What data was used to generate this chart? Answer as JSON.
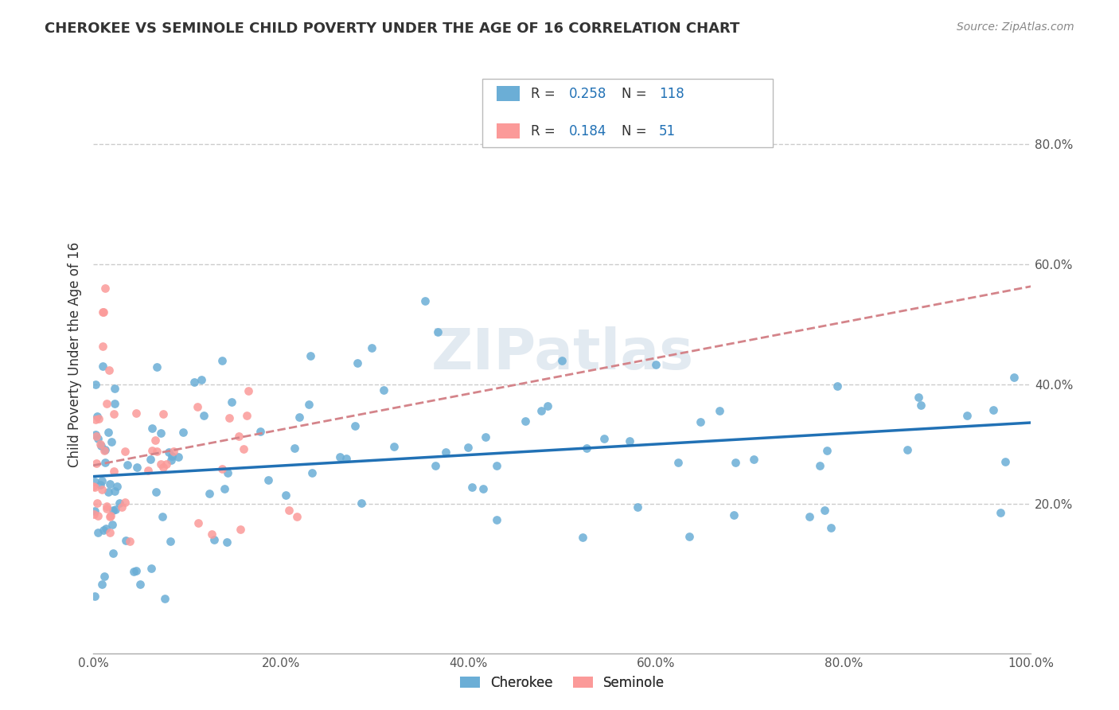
{
  "title": "CHEROKEE VS SEMINOLE CHILD POVERTY UNDER THE AGE OF 16 CORRELATION CHART",
  "source": "Source: ZipAtlas.com",
  "ylabel": "Child Poverty Under the Age of 16",
  "xlim": [
    0.0,
    1.0
  ],
  "ylim": [
    -0.05,
    0.95
  ],
  "cherokee_color": "#6baed6",
  "seminole_color": "#fb9a99",
  "cherokee_R": 0.258,
  "cherokee_N": 118,
  "seminole_R": 0.184,
  "seminole_N": 51,
  "trend_cherokee_color": "#2171b5",
  "trend_seminole_color": "#d4848a",
  "watermark": "ZIPatlas",
  "background_color": "#ffffff",
  "grid_color": "#cccccc"
}
